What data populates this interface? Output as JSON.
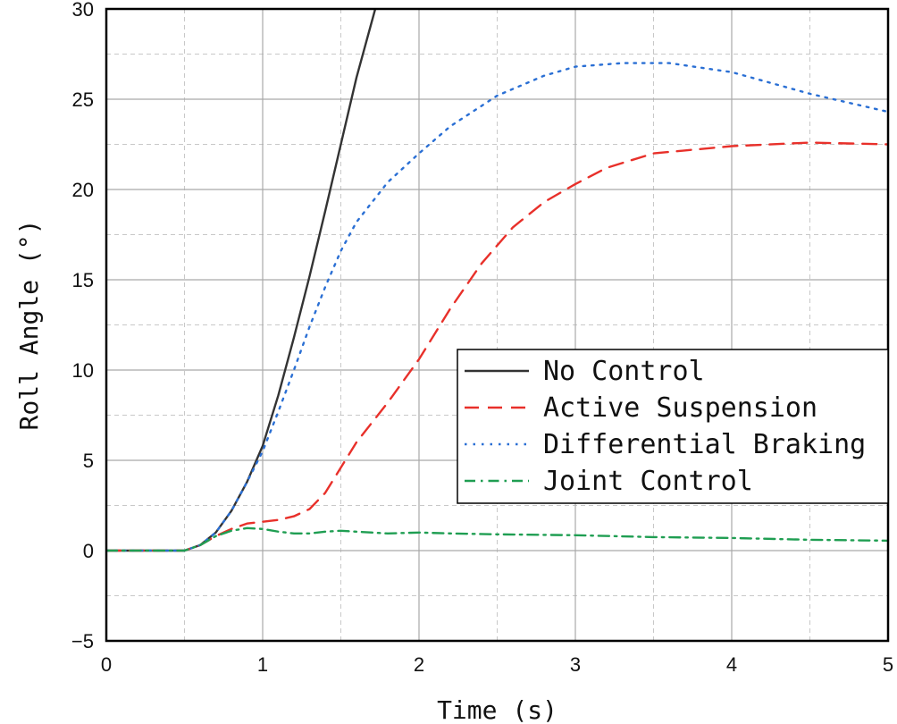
{
  "chart_data": {
    "type": "line",
    "title": "",
    "xlabel": "Time (s)",
    "ylabel": "Roll Angle (°)",
    "xlim": [
      0,
      5
    ],
    "ylim": [
      -5,
      30
    ],
    "xticks": [
      0,
      1,
      2,
      3,
      4,
      5
    ],
    "yticks": [
      -5,
      0,
      5,
      10,
      15,
      20,
      25,
      30
    ],
    "grid": true,
    "minor_grid": true,
    "legend_position": "center-right",
    "series": [
      {
        "name": "No Control",
        "color": "#333333",
        "style": "solid",
        "x": [
          0,
          0.5,
          0.6,
          0.7,
          0.8,
          0.9,
          1.0,
          1.1,
          1.2,
          1.3,
          1.4,
          1.5,
          1.6,
          1.72
        ],
        "y": [
          0,
          0,
          0.3,
          1.0,
          2.2,
          3.8,
          5.8,
          8.6,
          11.8,
          15.2,
          18.8,
          22.5,
          26.2,
          30
        ]
      },
      {
        "name": "Active Suspension",
        "color": "#e8302a",
        "style": "dashed",
        "x": [
          0,
          0.5,
          0.6,
          0.7,
          0.8,
          0.9,
          1.0,
          1.1,
          1.2,
          1.3,
          1.4,
          1.5,
          1.6,
          1.8,
          2.0,
          2.2,
          2.4,
          2.6,
          2.8,
          3.0,
          3.2,
          3.5,
          4.0,
          4.5,
          5.0
        ],
        "y": [
          0,
          0,
          0.3,
          0.8,
          1.2,
          1.5,
          1.6,
          1.7,
          1.9,
          2.3,
          3.2,
          4.6,
          6.0,
          8.2,
          10.6,
          13.4,
          15.9,
          17.9,
          19.3,
          20.3,
          21.2,
          22.0,
          22.4,
          22.6,
          22.5
        ]
      },
      {
        "name": "Differential Braking",
        "color": "#2a6fd4",
        "style": "dotted",
        "x": [
          0,
          0.5,
          0.6,
          0.7,
          0.8,
          0.9,
          1.0,
          1.1,
          1.2,
          1.3,
          1.4,
          1.5,
          1.6,
          1.8,
          2.0,
          2.2,
          2.5,
          2.8,
          3.0,
          3.3,
          3.6,
          4.0,
          4.5,
          5.0
        ],
        "y": [
          0,
          0,
          0.3,
          1.0,
          2.2,
          3.8,
          5.5,
          7.7,
          10.0,
          12.4,
          14.6,
          16.6,
          18.2,
          20.4,
          22.0,
          23.5,
          25.2,
          26.3,
          26.8,
          27.0,
          27.0,
          26.5,
          25.3,
          24.3
        ]
      },
      {
        "name": "Joint Control",
        "color": "#1f9e52",
        "style": "dashdot",
        "x": [
          0,
          0.5,
          0.6,
          0.7,
          0.8,
          0.9,
          1.0,
          1.1,
          1.2,
          1.3,
          1.4,
          1.5,
          1.6,
          1.8,
          2.0,
          2.2,
          2.5,
          3.0,
          3.5,
          4.0,
          4.5,
          5.0
        ],
        "y": [
          0,
          0,
          0.3,
          0.8,
          1.1,
          1.25,
          1.2,
          1.05,
          0.95,
          0.95,
          1.05,
          1.1,
          1.05,
          0.95,
          1.0,
          0.95,
          0.9,
          0.85,
          0.75,
          0.7,
          0.6,
          0.55
        ]
      }
    ]
  }
}
